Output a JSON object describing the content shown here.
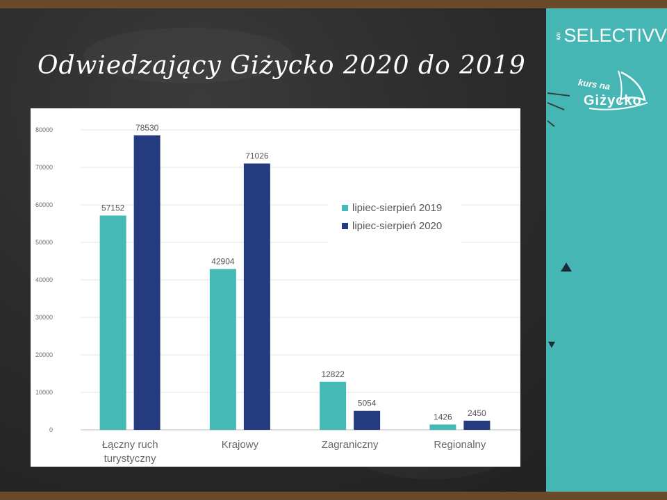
{
  "slide": {
    "title": "Odwiedzający Giżycko 2020 do 2019",
    "brand": "SELECTIVV",
    "logo_small": "kurs na",
    "logo_big": "Giżycko"
  },
  "colors": {
    "series_2019": "#45b9b5",
    "series_2020": "#253b80",
    "panel": "#45b6b3"
  },
  "chart_data": {
    "type": "bar",
    "categories": [
      "Łączny ruch turystyczny",
      "Krajowy",
      "Zagraniczny",
      "Regionalny"
    ],
    "category_lines": [
      [
        "Łączny ruch",
        "turystyczny"
      ],
      [
        "Krajowy"
      ],
      [
        "Zagraniczny"
      ],
      [
        "Regionalny"
      ]
    ],
    "series": [
      {
        "name": "lipiec-sierpień 2019",
        "values": [
          57152,
          42904,
          12822,
          1426
        ]
      },
      {
        "name": "lipiec-sierpień 2020",
        "values": [
          78530,
          71026,
          5054,
          2450
        ]
      }
    ],
    "y_ticks": [
      0,
      10000,
      20000,
      30000,
      40000,
      50000,
      60000,
      70000,
      80000
    ],
    "ylim": [
      0,
      80000
    ],
    "grid": true,
    "legend_position": "right"
  }
}
